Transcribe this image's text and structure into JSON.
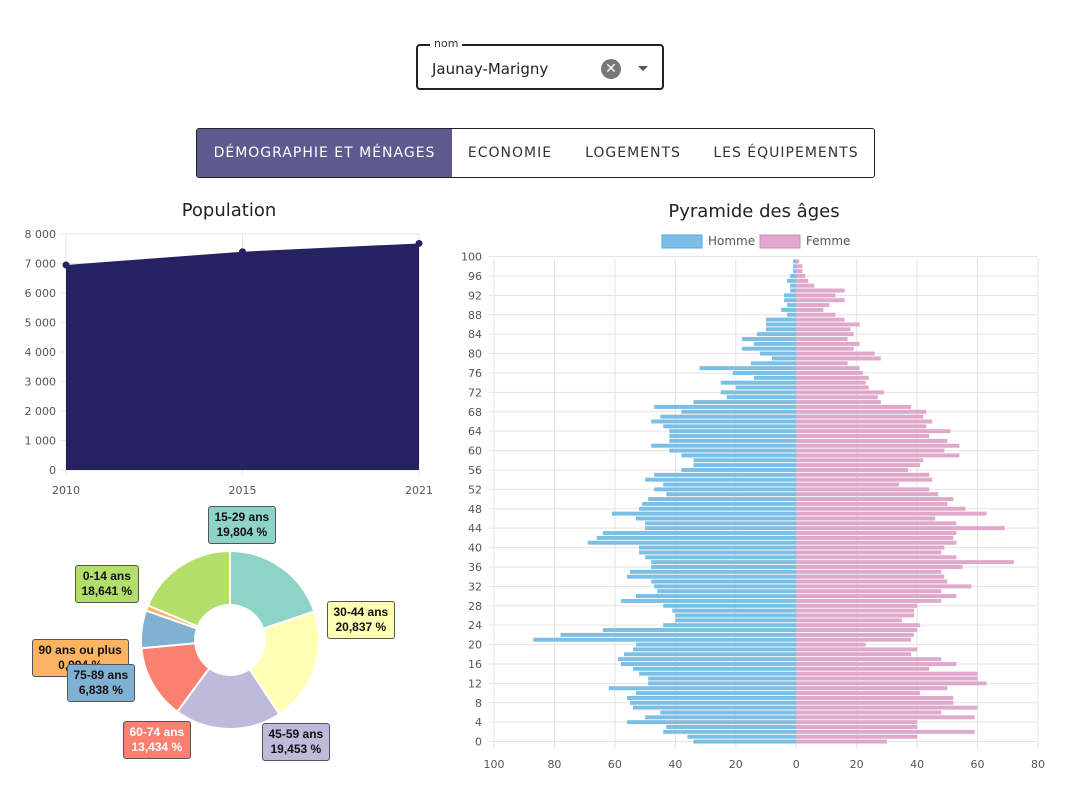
{
  "select": {
    "legend": "nom",
    "value": "Jaunay-Marigny",
    "clear_icon": "✕"
  },
  "tabs": [
    {
      "label": "DÉMOGRAPHIE ET MÉNAGES",
      "active": true
    },
    {
      "label": "ECONOMIE",
      "active": false
    },
    {
      "label": "LOGEMENTS",
      "active": false
    },
    {
      "label": "LES ÉQUIPEMENTS",
      "active": false
    }
  ],
  "chart_data": [
    {
      "type": "area",
      "title": "Population",
      "x": [
        "2010",
        "2015",
        "2021"
      ],
      "values": [
        6950,
        7400,
        7680
      ],
      "ylim": [
        0,
        8000
      ],
      "yticks": [
        "0",
        "1 000",
        "2 000",
        "3 000",
        "4 000",
        "5 000",
        "6 000",
        "7 000",
        "8 000"
      ],
      "color": "#262262",
      "grid": true
    },
    {
      "type": "pie",
      "title": "",
      "labels": [
        "15-29 ans",
        "30-44 ans",
        "45-59 ans",
        "60-74 ans",
        "75-89 ans",
        "90 ans ou plus",
        "0-14 ans"
      ],
      "values": [
        19.804,
        20.837,
        19.453,
        13.434,
        6.838,
        0.994,
        18.641
      ],
      "value_labels": [
        "19,804 %",
        "20,837 %",
        "19,453 %",
        "13,434 %",
        "6,838 %",
        "0,994 %",
        "18,641 %"
      ],
      "colors": [
        "#8dd3c7",
        "#ffffb3",
        "#bebada",
        "#fb8072",
        "#80b1d3",
        "#fdb462",
        "#b3de69"
      ]
    },
    {
      "type": "bar",
      "title": "Pyramide des âges",
      "orientation": "horizontal",
      "xlim": [
        -100,
        80
      ],
      "xticks": [
        "100",
        "80",
        "60",
        "40",
        "20",
        "0",
        "20",
        "40",
        "60",
        "80"
      ],
      "yticks": [
        "100",
        "96",
        "92",
        "88",
        "84",
        "80",
        "76",
        "72",
        "68",
        "64",
        "60",
        "56",
        "52",
        "48",
        "44",
        "40",
        "36",
        "32",
        "28",
        "24",
        "20",
        "16",
        "12",
        "8",
        "4",
        "0"
      ],
      "legend_position": "top",
      "series": [
        {
          "name": "Homme",
          "color": "#7cbfe6",
          "values": [
            34,
            36,
            44,
            43,
            56,
            50,
            45,
            54,
            55,
            56,
            53,
            62,
            49,
            49,
            52,
            54,
            58,
            59,
            57,
            54,
            53,
            87,
            78,
            64,
            44,
            40,
            40,
            41,
            44,
            58,
            53,
            46,
            47,
            48,
            56,
            55,
            48,
            48,
            50,
            52,
            52,
            69,
            66,
            64,
            50,
            50,
            53,
            61,
            52,
            51,
            49,
            43,
            47,
            44,
            50,
            47,
            38,
            34,
            34,
            38,
            42,
            48,
            42,
            42,
            42,
            44,
            48,
            45,
            38,
            47,
            34,
            23,
            25,
            20,
            25,
            14,
            21,
            32,
            15,
            8,
            12,
            18,
            14,
            18,
            13,
            10,
            10,
            10,
            3,
            5,
            3,
            4,
            4,
            2,
            2,
            3,
            2,
            1,
            1,
            1
          ]
        },
        {
          "name": "Femme",
          "color": "#e0a8cb",
          "values": [
            30,
            40,
            59,
            40,
            40,
            59,
            48,
            60,
            52,
            52,
            41,
            50,
            63,
            60,
            60,
            44,
            53,
            48,
            38,
            40,
            23,
            38,
            39,
            40,
            41,
            35,
            39,
            39,
            40,
            48,
            53,
            48,
            58,
            50,
            49,
            48,
            55,
            72,
            53,
            48,
            49,
            53,
            52,
            53,
            69,
            53,
            46,
            63,
            56,
            50,
            52,
            47,
            44,
            34,
            45,
            44,
            37,
            41,
            42,
            54,
            49,
            54,
            50,
            44,
            51,
            43,
            45,
            42,
            43,
            38,
            28,
            27,
            29,
            24,
            23,
            24,
            22,
            21,
            17,
            28,
            26,
            19,
            21,
            17,
            19,
            18,
            21,
            16,
            13,
            9,
            11,
            16,
            13,
            16,
            6,
            4,
            3,
            2,
            2,
            1
          ]
        }
      ]
    }
  ]
}
